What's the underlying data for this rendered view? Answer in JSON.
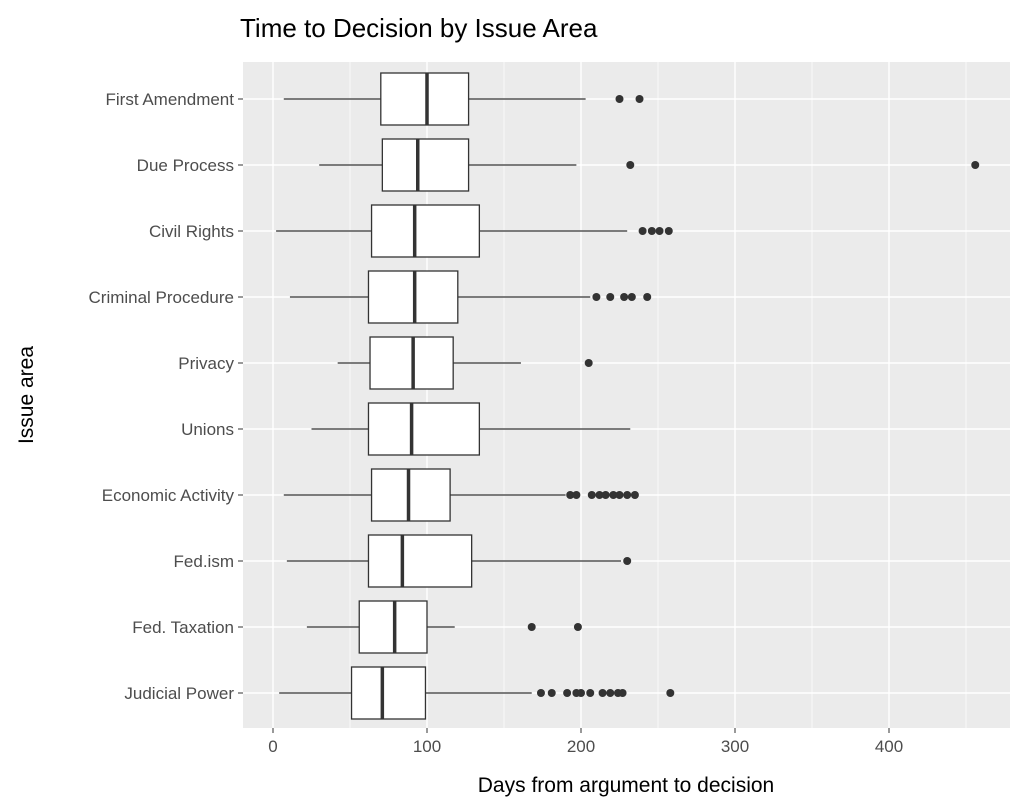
{
  "chart_data": {
    "type": "boxplot",
    "orientation": "horizontal",
    "title": "Time to Decision by Issue Area",
    "xlabel": "Days from argument to decision",
    "ylabel": "Issue area",
    "xlim": [
      -20,
      480
    ],
    "xticks": [
      0,
      100,
      200,
      300,
      400
    ],
    "grid": true,
    "categories": [
      "First Amendment",
      "Due Process",
      "Civil Rights",
      "Criminal Procedure",
      "Privacy",
      "Unions",
      "Economic Activity",
      "Fed.ism",
      "Fed. Taxation",
      "Judicial Power"
    ],
    "boxes": [
      {
        "category": "First Amendment",
        "whisker_low": 7,
        "q1": 70,
        "median": 100,
        "q3": 127,
        "whisker_high": 203,
        "outliers": [
          225,
          238
        ]
      },
      {
        "category": "Due Process",
        "whisker_low": 30,
        "q1": 71,
        "median": 94,
        "q3": 127,
        "whisker_high": 197,
        "outliers": [
          232,
          456
        ]
      },
      {
        "category": "Civil Rights",
        "whisker_low": 2,
        "q1": 64,
        "median": 92,
        "q3": 134,
        "whisker_high": 230,
        "outliers": [
          240,
          246,
          251,
          257
        ]
      },
      {
        "category": "Criminal Procedure",
        "whisker_low": 11,
        "q1": 62,
        "median": 92,
        "q3": 120,
        "whisker_high": 206,
        "outliers": [
          210,
          219,
          228,
          233,
          243
        ]
      },
      {
        "category": "Privacy",
        "whisker_low": 42,
        "q1": 63,
        "median": 91,
        "q3": 117,
        "whisker_high": 161,
        "outliers": [
          205
        ]
      },
      {
        "category": "Unions",
        "whisker_low": 25,
        "q1": 62,
        "median": 90,
        "q3": 134,
        "whisker_high": 232,
        "outliers": []
      },
      {
        "category": "Economic Activity",
        "whisker_low": 7,
        "q1": 64,
        "median": 88,
        "q3": 115,
        "whisker_high": 190,
        "outliers": [
          193,
          197,
          207,
          212,
          216,
          221,
          225,
          230,
          235
        ]
      },
      {
        "category": "Fed.ism",
        "whisker_low": 9,
        "q1": 62,
        "median": 84,
        "q3": 129,
        "whisker_high": 226,
        "outliers": [
          230
        ]
      },
      {
        "category": "Fed. Taxation",
        "whisker_low": 22,
        "q1": 56,
        "median": 79,
        "q3": 100,
        "whisker_high": 118,
        "outliers": [
          168,
          198
        ]
      },
      {
        "category": "Judicial Power",
        "whisker_low": 4,
        "q1": 51,
        "median": 71,
        "q3": 99,
        "whisker_high": 168,
        "outliers": [
          174,
          181,
          191,
          197,
          200,
          206,
          214,
          219,
          224,
          227,
          258
        ]
      }
    ],
    "colors": {
      "panel": "#ebebeb",
      "grid": "#ffffff",
      "box_line": "#333333",
      "box_fill": "#ffffff",
      "outlier": "#333333"
    }
  }
}
